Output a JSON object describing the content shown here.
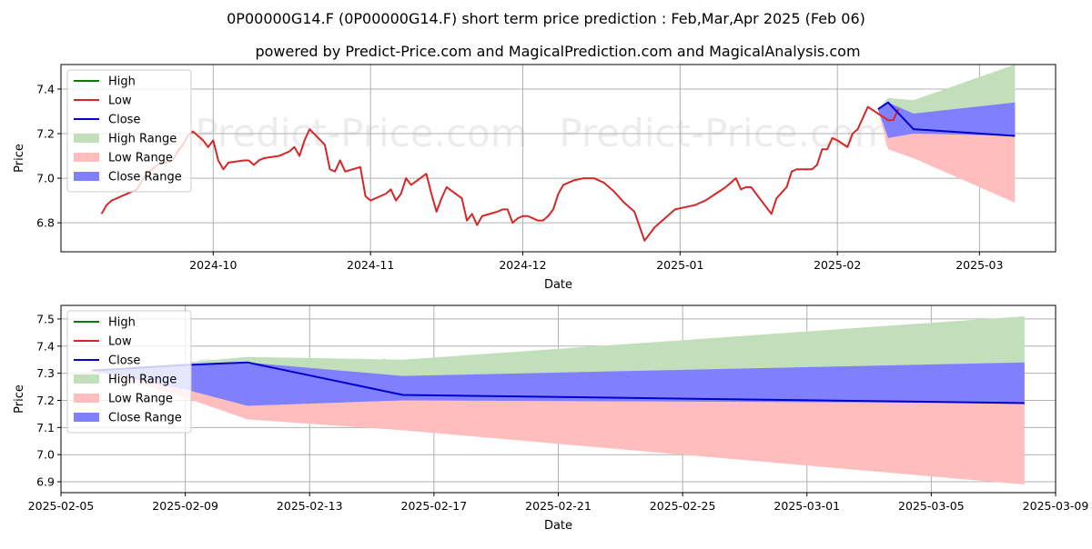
{
  "title": "0P00000G14.F (0P00000G14.F) short term price prediction : Feb,Mar,Apr 2025 (Feb 06)",
  "subtitle": "powered by Predict-Price.com and MagicalPrediction.com and MagicalAnalysis.com",
  "watermark": "Predict-Price.com",
  "colors": {
    "high": "#008000",
    "low": "#d62728",
    "close": "#0000cc",
    "high_range": "#c1dfba",
    "low_range": "#ffbdbd",
    "close_range": "#8080ff",
    "grid": "#b0b0b0"
  },
  "legend": {
    "high": "High",
    "low": "Low",
    "close": "Close",
    "high_range": "High Range",
    "low_range": "Low Range",
    "close_range": "Close Range"
  },
  "chart_data": [
    {
      "type": "line",
      "xlabel": "Date",
      "ylabel": "Price",
      "xlim": [
        "2024-09-01",
        "2025-03-16"
      ],
      "ylim": [
        6.67,
        7.51
      ],
      "x_ticks": [
        "2024-10",
        "2024-11",
        "2024-12",
        "2025-01",
        "2025-02",
        "2025-03"
      ],
      "y_ticks": [
        6.8,
        7.0,
        7.2,
        7.4
      ],
      "grid": true,
      "legend_position": "top-left",
      "history": {
        "name": "Low",
        "points": [
          [
            "2024-09-09",
            6.84
          ],
          [
            "2024-09-10",
            6.88
          ],
          [
            "2024-09-11",
            6.9
          ],
          [
            "2024-09-13",
            6.92
          ],
          [
            "2024-09-15",
            6.94
          ],
          [
            "2024-09-16",
            6.95
          ],
          [
            "2024-09-17",
            6.99
          ],
          [
            "2024-09-18",
            7.02
          ],
          [
            "2024-09-19",
            7.04
          ],
          [
            "2024-09-20",
            7.06
          ],
          [
            "2024-09-23",
            7.08
          ],
          [
            "2024-09-24",
            7.12
          ],
          [
            "2024-09-25",
            7.15
          ],
          [
            "2024-09-26",
            7.19
          ],
          [
            "2024-09-27",
            7.21
          ],
          [
            "2024-09-29",
            7.17
          ],
          [
            "2024-09-30",
            7.14
          ],
          [
            "2024-10-01",
            7.17
          ],
          [
            "2024-10-02",
            7.08
          ],
          [
            "2024-10-03",
            7.04
          ],
          [
            "2024-10-04",
            7.07
          ],
          [
            "2024-10-07",
            7.08
          ],
          [
            "2024-10-08",
            7.08
          ],
          [
            "2024-10-09",
            7.06
          ],
          [
            "2024-10-10",
            7.08
          ],
          [
            "2024-10-11",
            7.09
          ],
          [
            "2024-10-14",
            7.1
          ],
          [
            "2024-10-15",
            7.11
          ],
          [
            "2024-10-16",
            7.12
          ],
          [
            "2024-10-17",
            7.14
          ],
          [
            "2024-10-18",
            7.1
          ],
          [
            "2024-10-19",
            7.17
          ],
          [
            "2024-10-20",
            7.22
          ],
          [
            "2024-10-23",
            7.15
          ],
          [
            "2024-10-24",
            7.04
          ],
          [
            "2024-10-25",
            7.03
          ],
          [
            "2024-10-26",
            7.08
          ],
          [
            "2024-10-27",
            7.03
          ],
          [
            "2024-10-30",
            7.05
          ],
          [
            "2024-10-31",
            6.92
          ],
          [
            "2024-11-01",
            6.9
          ],
          [
            "2024-11-04",
            6.93
          ],
          [
            "2024-11-05",
            6.95
          ],
          [
            "2024-11-06",
            6.9
          ],
          [
            "2024-11-07",
            6.93
          ],
          [
            "2024-11-08",
            7.0
          ],
          [
            "2024-11-09",
            6.97
          ],
          [
            "2024-11-12",
            7.02
          ],
          [
            "2024-11-13",
            6.93
          ],
          [
            "2024-11-14",
            6.85
          ],
          [
            "2024-11-15",
            6.91
          ],
          [
            "2024-11-16",
            6.96
          ],
          [
            "2024-11-19",
            6.91
          ],
          [
            "2024-11-20",
            6.81
          ],
          [
            "2024-11-21",
            6.84
          ],
          [
            "2024-11-22",
            6.79
          ],
          [
            "2024-11-23",
            6.83
          ],
          [
            "2024-11-26",
            6.85
          ],
          [
            "2024-11-27",
            6.86
          ],
          [
            "2024-11-28",
            6.86
          ],
          [
            "2024-11-29",
            6.8
          ],
          [
            "2024-11-30",
            6.82
          ],
          [
            "2024-12-01",
            6.83
          ],
          [
            "2024-12-02",
            6.83
          ],
          [
            "2024-12-03",
            6.82
          ],
          [
            "2024-12-04",
            6.81
          ],
          [
            "2024-12-05",
            6.81
          ],
          [
            "2024-12-06",
            6.83
          ],
          [
            "2024-12-07",
            6.86
          ],
          [
            "2024-12-08",
            6.93
          ],
          [
            "2024-12-09",
            6.97
          ],
          [
            "2024-12-11",
            6.99
          ],
          [
            "2024-12-13",
            7.0
          ],
          [
            "2024-12-15",
            7.0
          ],
          [
            "2024-12-17",
            6.98
          ],
          [
            "2024-12-19",
            6.94
          ],
          [
            "2024-12-21",
            6.89
          ],
          [
            "2024-12-23",
            6.85
          ],
          [
            "2024-12-25",
            6.72
          ],
          [
            "2024-12-27",
            6.78
          ],
          [
            "2024-12-29",
            6.82
          ],
          [
            "2024-12-31",
            6.86
          ],
          [
            "2025-01-02",
            6.87
          ],
          [
            "2025-01-04",
            6.88
          ],
          [
            "2025-01-06",
            6.9
          ],
          [
            "2025-01-08",
            6.93
          ],
          [
            "2025-01-10",
            6.96
          ],
          [
            "2025-01-12",
            7.0
          ],
          [
            "2025-01-13",
            6.95
          ],
          [
            "2025-01-14",
            6.96
          ],
          [
            "2025-01-15",
            6.96
          ],
          [
            "2025-01-17",
            6.9
          ],
          [
            "2025-01-19",
            6.84
          ],
          [
            "2025-01-20",
            6.91
          ],
          [
            "2025-01-22",
            6.96
          ],
          [
            "2025-01-23",
            7.03
          ],
          [
            "2025-01-24",
            7.04
          ],
          [
            "2025-01-26",
            7.04
          ],
          [
            "2025-01-27",
            7.04
          ],
          [
            "2025-01-28",
            7.06
          ],
          [
            "2025-01-29",
            7.13
          ],
          [
            "2025-01-30",
            7.13
          ],
          [
            "2025-01-31",
            7.18
          ],
          [
            "2025-02-01",
            7.17
          ],
          [
            "2025-02-03",
            7.14
          ],
          [
            "2025-02-04",
            7.2
          ],
          [
            "2025-02-05",
            7.22
          ],
          [
            "2025-02-07",
            7.32
          ],
          [
            "2025-02-09",
            7.29
          ],
          [
            "2025-02-11",
            7.26
          ],
          [
            "2025-02-12",
            7.26
          ],
          [
            "2025-02-13",
            7.31
          ]
        ]
      },
      "forecast_dates": [
        "2025-02-09",
        "2025-02-11",
        "2025-02-16",
        "2025-03-08"
      ],
      "close": [
        7.31,
        7.34,
        7.22,
        7.19
      ],
      "high_range": {
        "upper": [
          7.31,
          7.36,
          7.35,
          7.51
        ],
        "lower": [
          7.31,
          7.18,
          7.2,
          7.19
        ]
      },
      "low_range": {
        "upper": [
          7.31,
          7.18,
          7.2,
          7.19
        ],
        "lower": [
          7.31,
          7.13,
          7.09,
          6.89
        ]
      },
      "close_range": {
        "upper": [
          7.31,
          7.34,
          7.29,
          7.34
        ],
        "lower": [
          7.31,
          7.18,
          7.2,
          7.19
        ]
      }
    },
    {
      "type": "line",
      "xlabel": "Date",
      "ylabel": "Price",
      "xlim": [
        "2025-02-05",
        "2025-03-09"
      ],
      "ylim": [
        6.86,
        7.55
      ],
      "x_ticks": [
        "2025-02-05",
        "2025-02-09",
        "2025-02-13",
        "2025-02-17",
        "2025-02-21",
        "2025-02-25",
        "2025-03-01",
        "2025-03-05",
        "2025-03-09"
      ],
      "y_ticks": [
        6.9,
        7.0,
        7.1,
        7.2,
        7.3,
        7.4,
        7.5
      ],
      "grid": true,
      "legend_position": "top-left",
      "forecast_dates": [
        "2025-02-06",
        "2025-02-09",
        "2025-02-11",
        "2025-02-16",
        "2025-03-08"
      ],
      "close": [
        7.31,
        7.33,
        7.34,
        7.22,
        7.19
      ],
      "high_range": {
        "upper": [
          7.31,
          7.34,
          7.36,
          7.35,
          7.51
        ],
        "lower": [
          7.31,
          7.24,
          7.18,
          7.2,
          7.19
        ]
      },
      "low_range": {
        "upper": [
          7.31,
          7.24,
          7.18,
          7.2,
          7.19
        ],
        "lower": [
          7.31,
          7.21,
          7.13,
          7.09,
          6.89
        ]
      },
      "close_range": {
        "upper": [
          7.31,
          7.33,
          7.34,
          7.29,
          7.34
        ],
        "lower": [
          7.31,
          7.24,
          7.18,
          7.2,
          7.19
        ]
      }
    }
  ]
}
